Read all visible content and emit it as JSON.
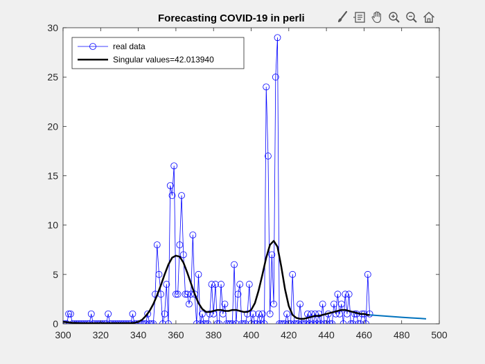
{
  "chart_data": {
    "type": "line",
    "title": "Forecasting COVID-19 in perli",
    "xlabel": "",
    "ylabel": "",
    "xlim": [
      300,
      500
    ],
    "ylim": [
      0,
      30
    ],
    "xticks": [
      300,
      320,
      340,
      360,
      380,
      400,
      420,
      440,
      460,
      480,
      500
    ],
    "yticks": [
      0,
      5,
      10,
      15,
      20,
      25,
      30
    ],
    "grid": false,
    "legend_position": "top-left",
    "series": [
      {
        "name": "real data",
        "style": "line-with-circle-markers",
        "color": "#0000ff",
        "x": [
          300,
          301,
          302,
          303,
          304,
          305,
          306,
          307,
          308,
          309,
          310,
          311,
          312,
          313,
          314,
          315,
          316,
          317,
          318,
          319,
          320,
          321,
          322,
          323,
          324,
          325,
          326,
          327,
          328,
          329,
          330,
          331,
          332,
          333,
          334,
          335,
          336,
          337,
          338,
          339,
          340,
          341,
          342,
          343,
          344,
          345,
          346,
          347,
          348,
          349,
          350,
          351,
          352,
          353,
          354,
          355,
          356,
          357,
          358,
          359,
          360,
          361,
          362,
          363,
          364,
          365,
          366,
          367,
          368,
          369,
          370,
          371,
          372,
          373,
          374,
          375,
          376,
          377,
          378,
          379,
          380,
          381,
          382,
          383,
          384,
          385,
          386,
          387,
          388,
          389,
          390,
          391,
          392,
          393,
          394,
          395,
          396,
          397,
          398,
          399,
          400,
          401,
          402,
          403,
          404,
          405,
          406,
          407,
          408,
          409,
          410,
          411,
          412,
          413,
          414,
          415,
          416,
          417,
          418,
          419,
          420,
          421,
          422,
          423,
          424,
          425,
          426,
          427,
          428,
          429,
          430,
          431,
          432,
          433,
          434,
          435,
          436,
          437,
          438,
          439,
          440,
          441,
          442,
          443,
          444,
          445,
          446,
          447,
          448,
          449,
          450,
          451,
          452,
          453,
          454,
          455,
          456,
          457,
          458,
          459,
          460,
          461,
          462,
          463
        ],
        "y": [
          0,
          0,
          0,
          1,
          1,
          0,
          0,
          0,
          0,
          0,
          0,
          0,
          0,
          0,
          0,
          1,
          0,
          0,
          0,
          0,
          0,
          0,
          0,
          0,
          1,
          0,
          0,
          0,
          0,
          0,
          0,
          0,
          0,
          0,
          0,
          0,
          0,
          1,
          0,
          0,
          0,
          0,
          0,
          0,
          0,
          1,
          0,
          0,
          0,
          3,
          8,
          5,
          3,
          0,
          1,
          4,
          0,
          14,
          13,
          16,
          3,
          3,
          8,
          13,
          7,
          3,
          3,
          2,
          3,
          9,
          3,
          0,
          5,
          0,
          1,
          0,
          0,
          0,
          1,
          4,
          1,
          4,
          0,
          0,
          4,
          1,
          2,
          0,
          0,
          0,
          0,
          6,
          0,
          3,
          4,
          0,
          0,
          0,
          1,
          4,
          0,
          1,
          0,
          0,
          1,
          0,
          1,
          0,
          24,
          17,
          1,
          7,
          2,
          25,
          29,
          0,
          0,
          0,
          0,
          1,
          0,
          0,
          5,
          0,
          0,
          0,
          2,
          0,
          0,
          0,
          1,
          0,
          1,
          0,
          1,
          0,
          1,
          0,
          2,
          0,
          0,
          1,
          0,
          0,
          2,
          1,
          3,
          1,
          2,
          0,
          3,
          1,
          3,
          0,
          0,
          1,
          1,
          0,
          0,
          1,
          1,
          0,
          5,
          1
        ]
      },
      {
        "name": "Singular values=42.013940",
        "style": "thick-line",
        "color": "#000000",
        "x": [
          300,
          305,
          310,
          315,
          320,
          325,
          330,
          335,
          338,
          340,
          342,
          344,
          346,
          348,
          350,
          352,
          354,
          356,
          358,
          360,
          362,
          364,
          366,
          368,
          370,
          372,
          374,
          376,
          378,
          380,
          382,
          384,
          386,
          388,
          390,
          392,
          394,
          396,
          398,
          400,
          402,
          404,
          406,
          408,
          410,
          412,
          414,
          416,
          418,
          420,
          422,
          424,
          426,
          428,
          430,
          432,
          434,
          436,
          438,
          440,
          442,
          444,
          446,
          448,
          450,
          452,
          454,
          456,
          458,
          460,
          462,
          463
        ],
        "y": [
          0.2,
          0.1,
          0.05,
          0.05,
          0.05,
          0.05,
          0.05,
          0.05,
          0.1,
          0.2,
          0.4,
          0.8,
          1.3,
          2.0,
          2.9,
          3.9,
          5.0,
          6.0,
          6.7,
          6.9,
          6.8,
          6.2,
          5.2,
          4.1,
          3.0,
          2.1,
          1.5,
          1.2,
          1.2,
          1.3,
          1.4,
          1.4,
          1.3,
          1.3,
          1.4,
          1.4,
          1.3,
          1.2,
          1.2,
          1.4,
          2.1,
          3.4,
          5.0,
          6.7,
          8.0,
          8.4,
          7.8,
          5.8,
          3.5,
          1.8,
          0.9,
          0.6,
          0.5,
          0.5,
          0.6,
          0.7,
          0.8,
          0.8,
          0.9,
          1.0,
          1.1,
          1.2,
          1.3,
          1.4,
          1.4,
          1.3,
          1.2,
          1.1,
          1.0,
          1.0,
          0.9,
          0.9
        ]
      },
      {
        "name": "",
        "style": "line",
        "color": "#0072bd",
        "x": [
          463,
          465,
          470,
          475,
          480,
          485,
          490,
          493
        ],
        "y": [
          0.9,
          0.87,
          0.8,
          0.73,
          0.66,
          0.6,
          0.54,
          0.5
        ]
      }
    ]
  },
  "legend": {
    "items": [
      {
        "label": "real data"
      },
      {
        "label": "Singular values=42.013940"
      }
    ]
  },
  "toolbar": {
    "items": [
      "brush-icon",
      "data-tips-icon",
      "pan-hand-icon",
      "zoom-in-icon",
      "zoom-out-icon",
      "home-icon"
    ]
  }
}
